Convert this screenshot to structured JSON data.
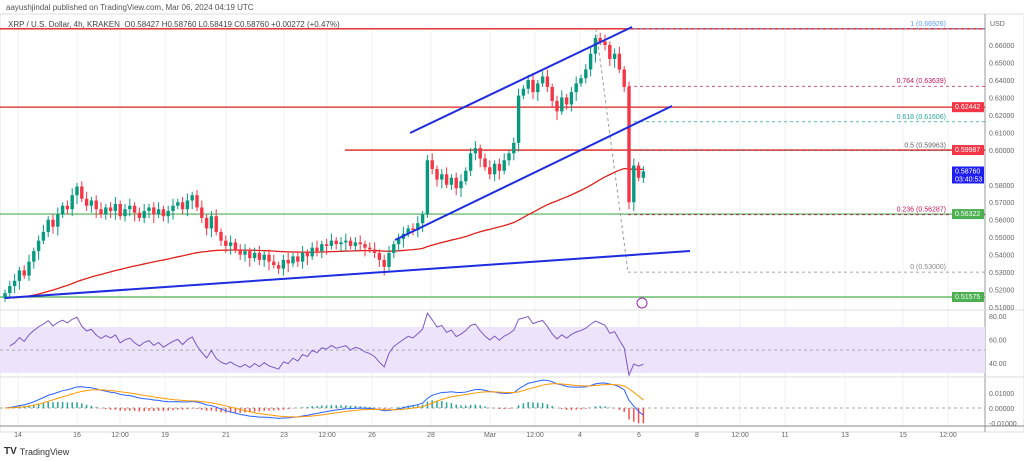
{
  "header": {
    "published": "aayushjindal published on TradingView.com, Mar 06, 2024 04:19 UTC",
    "symbol": "XRP / U.S. Dollar, 4h, KRAKEN",
    "ohlc": "O0.58427  H0.58760  L0.58419  C0.58760  +0.00272 (+0.47%)"
  },
  "price_axis": {
    "currency": "USD",
    "ticks": [
      "0.66000",
      "0.65000",
      "0.64000",
      "0.63000",
      "0.62000",
      "0.61000",
      "0.60000",
      "0.58000",
      "0.57000",
      "0.56000",
      "0.55000",
      "0.54000",
      "0.53000",
      "0.52000",
      "0.51000"
    ],
    "labels": [
      {
        "text": "0.62442",
        "color": "#f23645"
      },
      {
        "text": "0.59987",
        "color": "#f23645"
      },
      {
        "text": "0.58760\n03:40:53",
        "color": "#1e1ef0"
      },
      {
        "text": "0.56322",
        "color": "#4caf50"
      },
      {
        "text": "0.51575",
        "color": "#4caf50"
      }
    ]
  },
  "fib": [
    {
      "text": "1 (0.66926)",
      "color": "#5b9cf6"
    },
    {
      "text": "0.764 (0.63639)",
      "color": "#c2185b"
    },
    {
      "text": "0.618 (0.61606)",
      "color": "#26a69a"
    },
    {
      "text": "0.5 (0.59963)",
      "color": "#666666"
    },
    {
      "text": "0.236 (0.56287)",
      "color": "#c2185b"
    },
    {
      "text": "0 (0.53000)",
      "color": "#888888"
    }
  ],
  "rsi_axis": [
    "80.00",
    "60.00",
    "40.00"
  ],
  "macd_axis": [
    "0.01000",
    "0.00000",
    "-0.01000"
  ],
  "time_axis": [
    "14",
    "16",
    "12:00",
    "19",
    "21",
    "23",
    "12:00",
    "26",
    "28",
    "Mar",
    "12:00",
    "4",
    "6",
    "8",
    "12:00",
    "11",
    "13",
    "15",
    "12:00"
  ],
  "footer": {
    "brand": "TradingView"
  },
  "colors": {
    "up": "#089981",
    "down": "#f23645",
    "trend": "#1e2de0",
    "ma": "#e0201a"
  },
  "chart_data": {
    "type": "candlestick",
    "closes": [
      0.518,
      0.522,
      0.525,
      0.531,
      0.528,
      0.536,
      0.542,
      0.548,
      0.553,
      0.56,
      0.556,
      0.563,
      0.568,
      0.566,
      0.574,
      0.579,
      0.572,
      0.568,
      0.571,
      0.566,
      0.563,
      0.567,
      0.565,
      0.569,
      0.562,
      0.566,
      0.568,
      0.564,
      0.561,
      0.565,
      0.567,
      0.563,
      0.566,
      0.562,
      0.565,
      0.568,
      0.57,
      0.566,
      0.571,
      0.574,
      0.567,
      0.561,
      0.555,
      0.562,
      0.553,
      0.548,
      0.545,
      0.547,
      0.543,
      0.54,
      0.542,
      0.538,
      0.541,
      0.537,
      0.54,
      0.536,
      0.534,
      0.532,
      0.537,
      0.535,
      0.539,
      0.536,
      0.541,
      0.539,
      0.544,
      0.542,
      0.546,
      0.545,
      0.548,
      0.546,
      0.547,
      0.548,
      0.545,
      0.547,
      0.546,
      0.544,
      0.543,
      0.541,
      0.537,
      0.533,
      0.541,
      0.546,
      0.549,
      0.552,
      0.555,
      0.554,
      0.558,
      0.563,
      0.594,
      0.589,
      0.583,
      0.586,
      0.58,
      0.584,
      0.578,
      0.582,
      0.588,
      0.598,
      0.601,
      0.595,
      0.59,
      0.586,
      0.592,
      0.588,
      0.594,
      0.598,
      0.604,
      0.631,
      0.635,
      0.64,
      0.633,
      0.638,
      0.642,
      0.636,
      0.628,
      0.622,
      0.63,
      0.626,
      0.633,
      0.638,
      0.641,
      0.646,
      0.655,
      0.664,
      0.662,
      0.66,
      0.652,
      0.655,
      0.646,
      0.636,
      0.57,
      0.591,
      0.584,
      0.5876
    ],
    "horizontal_levels": [
      0.66926,
      0.62442,
      0.59987,
      0.56322,
      0.51575
    ],
    "ylim": [
      0.505,
      0.675
    ]
  }
}
